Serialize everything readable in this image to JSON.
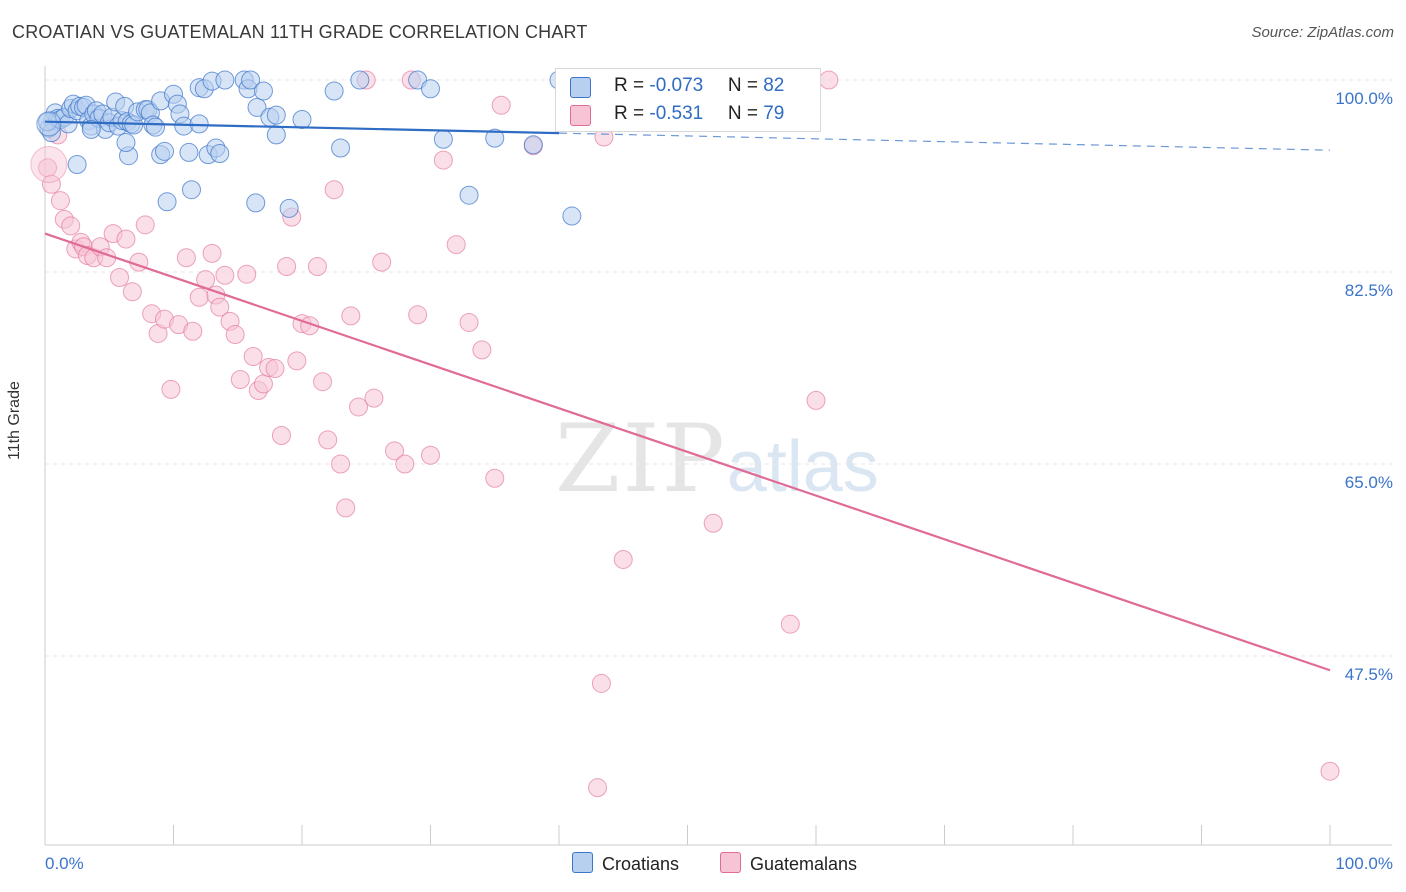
{
  "title": "CROATIAN VS GUATEMALAN 11TH GRADE CORRELATION CHART",
  "source": "Source: ZipAtlas.com",
  "watermark": {
    "zip": "ZIP",
    "atlas": "atlas"
  },
  "colors": {
    "blue": "#3b74c9",
    "blue_fill": "#b8d0f0",
    "pink": "#e06b96",
    "pink_fill": "#f7c4d5"
  },
  "legend": {
    "rows": [
      {
        "r_label": "R = ",
        "r_value": "-0.073",
        "n_label": "N = ",
        "n_value": "82"
      },
      {
        "r_label": "R = ",
        "r_value": "-0.531",
        "n_label": "N = ",
        "n_value": "79"
      }
    ],
    "bottom": [
      "Croatians",
      "Guatemalans"
    ]
  },
  "chart_data": {
    "type": "scatter",
    "title": "CROATIAN VS GUATEMALAN 11TH GRADE CORRELATION CHART",
    "xlabel": "",
    "ylabel": "11th Grade",
    "xlim": [
      0,
      100
    ],
    "ylim": [
      30,
      102.5
    ],
    "x_tick_labels": [
      "0.0%",
      "100.0%"
    ],
    "y_ticks": [
      47.5,
      65.0,
      82.5,
      100.0
    ],
    "y_tick_labels": [
      "47.5%",
      "65.0%",
      "82.5%",
      "100.0%"
    ],
    "grid": true,
    "legend_position": "top-center",
    "series": [
      {
        "name": "Croatians",
        "color": "#3b74c9",
        "R": -0.073,
        "N": 82,
        "trend": {
          "x0": 0,
          "y0": 96.2,
          "x1": 100,
          "y1": 93.6,
          "solid_until": 40
        },
        "points": [
          [
            0.3,
            95.6
          ],
          [
            0.6,
            96.3
          ],
          [
            0.8,
            97.0
          ],
          [
            0.5,
            95.2
          ],
          [
            1.0,
            96.5
          ],
          [
            1.2,
            96.4
          ],
          [
            1.5,
            96.6
          ],
          [
            1.8,
            96.0
          ],
          [
            2.0,
            97.4
          ],
          [
            2.2,
            97.8
          ],
          [
            2.5,
            97.2
          ],
          [
            2.7,
            97.6
          ],
          [
            3.0,
            97.5
          ],
          [
            3.2,
            97.7
          ],
          [
            3.4,
            96.3
          ],
          [
            3.6,
            95.8
          ],
          [
            3.8,
            96.9
          ],
          [
            4.0,
            97.2
          ],
          [
            4.2,
            96.5
          ],
          [
            4.5,
            96.9
          ],
          [
            4.7,
            95.5
          ],
          [
            5.0,
            96.1
          ],
          [
            5.2,
            96.6
          ],
          [
            5.5,
            98.0
          ],
          [
            5.7,
            95.8
          ],
          [
            6.0,
            96.3
          ],
          [
            6.2,
            97.6
          ],
          [
            6.4,
            96.2
          ],
          [
            6.7,
            96.0
          ],
          [
            6.9,
            95.9
          ],
          [
            7.2,
            97.1
          ],
          [
            6.5,
            93.1
          ],
          [
            7.8,
            97.3
          ],
          [
            8.0,
            97.3
          ],
          [
            8.2,
            97.0
          ],
          [
            8.4,
            95.9
          ],
          [
            8.6,
            95.7
          ],
          [
            9.0,
            93.2
          ],
          [
            9.3,
            93.5
          ],
          [
            9.0,
            98.1
          ],
          [
            10.0,
            98.7
          ],
          [
            10.3,
            97.8
          ],
          [
            10.5,
            96.9
          ],
          [
            10.8,
            95.8
          ],
          [
            11.2,
            93.4
          ],
          [
            12.0,
            99.3
          ],
          [
            12.4,
            99.2
          ],
          [
            12.7,
            93.2
          ],
          [
            13.0,
            99.9
          ],
          [
            13.3,
            93.8
          ],
          [
            13.6,
            93.3
          ],
          [
            14.0,
            100.0
          ],
          [
            11.4,
            90.0
          ],
          [
            12.0,
            96.0
          ],
          [
            15.5,
            100.0
          ],
          [
            15.8,
            99.2
          ],
          [
            16.0,
            100.0
          ],
          [
            16.5,
            97.5
          ],
          [
            17.0,
            99.0
          ],
          [
            16.4,
            88.8
          ],
          [
            17.5,
            96.6
          ],
          [
            18.0,
            95.0
          ],
          [
            18.0,
            96.8
          ],
          [
            19.0,
            88.3
          ],
          [
            20.0,
            96.4
          ],
          [
            22.5,
            99.0
          ],
          [
            23.0,
            93.8
          ],
          [
            24.5,
            100.0
          ],
          [
            2.5,
            92.3
          ],
          [
            6.3,
            94.3
          ],
          [
            3.6,
            95.5
          ],
          [
            9.5,
            88.9
          ],
          [
            29.0,
            100.0
          ],
          [
            30.0,
            99.2
          ],
          [
            31.0,
            94.6
          ],
          [
            33.0,
            89.5
          ],
          [
            35.0,
            94.7
          ],
          [
            40.0,
            100.0
          ],
          [
            38.0,
            94.1
          ],
          [
            41.0,
            87.6
          ],
          [
            46.5,
            97.3
          ],
          [
            0.2,
            96.2
          ]
        ]
      },
      {
        "name": "Guatemalans",
        "color": "#e06b96",
        "R": -0.531,
        "N": 79,
        "trend": {
          "x0": 0,
          "y0": 86.0,
          "x1": 100,
          "y1": 46.2
        },
        "points": [
          [
            0.2,
            92.0
          ],
          [
            0.5,
            90.5
          ],
          [
            1.0,
            95.0
          ],
          [
            1.2,
            89.0
          ],
          [
            1.5,
            87.3
          ],
          [
            2.0,
            86.7
          ],
          [
            2.4,
            84.6
          ],
          [
            2.8,
            85.2
          ],
          [
            3.0,
            84.8
          ],
          [
            3.3,
            84.0
          ],
          [
            3.8,
            83.8
          ],
          [
            4.3,
            84.8
          ],
          [
            4.8,
            83.8
          ],
          [
            5.3,
            86.0
          ],
          [
            5.8,
            82.0
          ],
          [
            6.3,
            85.5
          ],
          [
            6.8,
            80.7
          ],
          [
            7.3,
            83.4
          ],
          [
            7.8,
            86.8
          ],
          [
            8.3,
            78.7
          ],
          [
            8.8,
            76.9
          ],
          [
            9.3,
            78.2
          ],
          [
            9.8,
            71.8
          ],
          [
            10.4,
            77.7
          ],
          [
            11.0,
            83.8
          ],
          [
            11.5,
            77.1
          ],
          [
            12.0,
            80.2
          ],
          [
            12.5,
            81.8
          ],
          [
            13.0,
            84.2
          ],
          [
            13.3,
            80.4
          ],
          [
            13.6,
            79.3
          ],
          [
            14.0,
            82.2
          ],
          [
            14.4,
            78.0
          ],
          [
            14.8,
            76.8
          ],
          [
            15.2,
            72.7
          ],
          [
            15.7,
            82.3
          ],
          [
            16.2,
            74.8
          ],
          [
            16.6,
            71.7
          ],
          [
            17.0,
            72.3
          ],
          [
            17.4,
            73.8
          ],
          [
            17.9,
            73.7
          ],
          [
            18.4,
            67.6
          ],
          [
            18.8,
            83.0
          ],
          [
            19.2,
            87.5
          ],
          [
            19.6,
            74.4
          ],
          [
            20.0,
            77.8
          ],
          [
            20.6,
            77.6
          ],
          [
            21.2,
            83.0
          ],
          [
            21.6,
            72.5
          ],
          [
            22.0,
            67.2
          ],
          [
            22.5,
            90.0
          ],
          [
            23.0,
            65.0
          ],
          [
            23.4,
            61.0
          ],
          [
            23.8,
            78.5
          ],
          [
            24.4,
            70.2
          ],
          [
            25.0,
            100.0
          ],
          [
            25.6,
            71.0
          ],
          [
            26.2,
            83.4
          ],
          [
            27.2,
            66.2
          ],
          [
            28.0,
            65.0
          ],
          [
            29.0,
            78.6
          ],
          [
            30.0,
            65.8
          ],
          [
            31.0,
            92.7
          ],
          [
            32.0,
            85.0
          ],
          [
            33.0,
            77.9
          ],
          [
            34.0,
            75.4
          ],
          [
            35.0,
            63.7
          ],
          [
            35.5,
            97.7
          ],
          [
            38.0,
            94.0
          ],
          [
            43.5,
            94.8
          ],
          [
            43.3,
            45.0
          ],
          [
            45.0,
            56.3
          ],
          [
            52.0,
            59.6
          ],
          [
            58.0,
            50.4
          ],
          [
            60.0,
            70.8
          ],
          [
            61.0,
            100.0
          ],
          [
            100.0,
            37.0
          ],
          [
            43.0,
            35.5
          ],
          [
            28.5,
            100.0
          ]
        ]
      }
    ]
  }
}
